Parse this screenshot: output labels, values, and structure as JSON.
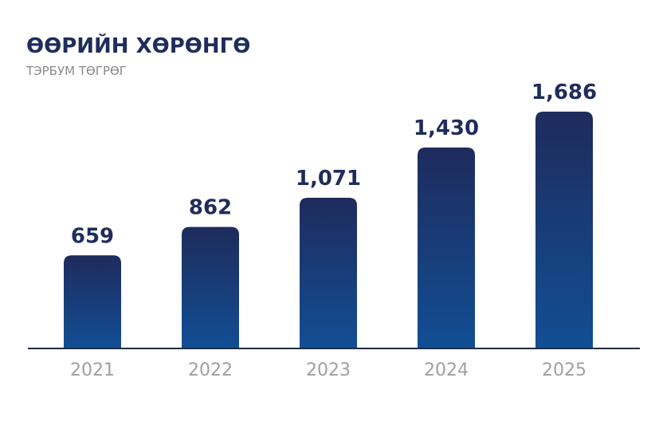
{
  "chart_data": {
    "type": "bar",
    "title": "ӨӨРИЙН ХӨРӨНГӨ",
    "subtitle": "ТЭРБУМ ТӨГРӨГ",
    "categories": [
      "2021",
      "2022",
      "2023",
      "2024",
      "2025"
    ],
    "values": [
      659,
      862,
      1071,
      1430,
      1686
    ],
    "value_labels": [
      "659",
      "862",
      "1,071",
      "1,430",
      "1,686"
    ],
    "color": "#1a3a78"
  }
}
